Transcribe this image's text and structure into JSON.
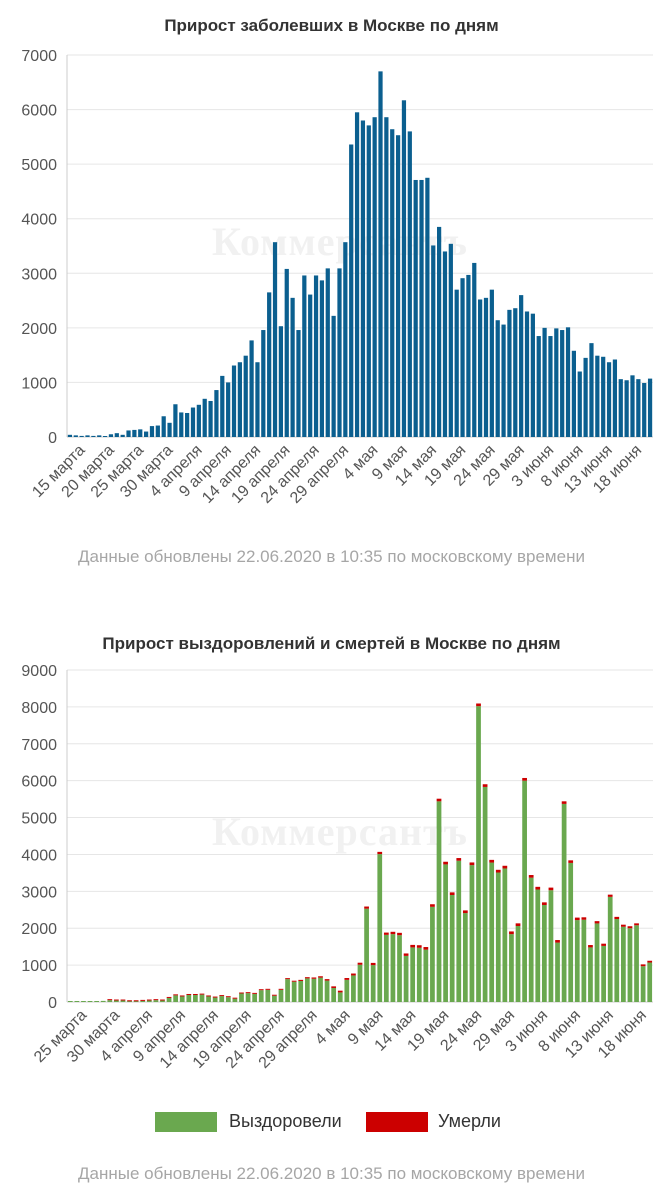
{
  "chart_data": [
    {
      "type": "bar",
      "title": "Прирост заболевших в Москве по дням",
      "note": "Данные обновлены 22.06.2020 в 10:35 по московскому времени",
      "watermark": "Коммерсантъ",
      "xlabel": "",
      "ylabel": "",
      "ylim": [
        0,
        7000
      ],
      "yticks": [
        "0",
        "1000",
        "2000",
        "3000",
        "4000",
        "5000",
        "6000",
        "7000"
      ],
      "grid": true,
      "categories_start": "2020-03-13",
      "category_labels": [
        "15 марта",
        "20 марта",
        "25 марта",
        "30 марта",
        "4 апреля",
        "9 апреля",
        "14 апреля",
        "19 апреля",
        "24 апреля",
        "29 апреля",
        "4 мая",
        "9 мая",
        "14 мая",
        "19 мая",
        "24 мая",
        "29 мая",
        "3 июня",
        "8 июня",
        "13 июня",
        "18 июня"
      ],
      "colors": {
        "bars": "#0b5f8f"
      },
      "series": [
        {
          "values": [
            40,
            30,
            20,
            30,
            20,
            30,
            10,
            50,
            70,
            40,
            120,
            130,
            140,
            100,
            200,
            210,
            380,
            260,
            600,
            450,
            440,
            540,
            590,
            700,
            660,
            860,
            1120,
            1000,
            1310,
            1370,
            1490,
            1770,
            1370,
            1960,
            2650,
            3570,
            2030,
            3080,
            2550,
            1960,
            2960,
            2610,
            2960,
            2870,
            3090,
            2220,
            3090,
            3570,
            5360,
            5950,
            5800,
            5710,
            5860,
            6700,
            5860,
            5640,
            5530,
            6170,
            5600,
            4710,
            4710,
            4750,
            3510,
            3850,
            3400,
            3540,
            2700,
            2910,
            2970,
            3190,
            2520,
            2550,
            2700,
            2140,
            2060,
            2330,
            2360,
            2600,
            2300,
            2260,
            1850,
            2000,
            1850,
            1990,
            1960,
            2010,
            1580,
            1200,
            1450,
            1720,
            1490,
            1470,
            1370,
            1420,
            1060,
            1040,
            1130,
            1060,
            990,
            1070
          ]
        }
      ]
    },
    {
      "type": "bar",
      "stacked": true,
      "title": "Прирост выздоровлений и смертей в Москве по дням",
      "note": "Данные обновлены 22.06.2020 в 10:35 по московскому времени",
      "watermark": "Коммерсантъ",
      "xlabel": "",
      "ylabel": "",
      "ylim": [
        0,
        9000
      ],
      "yticks": [
        "0",
        "1000",
        "2000",
        "3000",
        "4000",
        "5000",
        "6000",
        "7000",
        "8000",
        "9000"
      ],
      "grid": true,
      "legend": "bottom",
      "categories_start": "2020-03-23",
      "category_labels": [
        "25 марта",
        "30 марта",
        "4 апреля",
        "9 апреля",
        "14 апреля",
        "19 апреля",
        "24 апреля",
        "29 апреля",
        "4 мая",
        "9 мая",
        "14 мая",
        "19 мая",
        "24 мая",
        "29 мая",
        "3 июня",
        "8 июня",
        "13 июня",
        "18 июня"
      ],
      "series": [
        {
          "name": "Выздоровели",
          "color": "#6aa84f",
          "values": [
            10,
            10,
            10,
            10,
            20,
            30,
            50,
            40,
            40,
            20,
            20,
            30,
            40,
            50,
            40,
            110,
            180,
            150,
            190,
            190,
            200,
            150,
            120,
            160,
            130,
            90,
            230,
            240,
            220,
            320,
            330,
            170,
            330,
            620,
            550,
            570,
            640,
            630,
            660,
            580,
            380,
            260,
            600,
            720,
            1010,
            2530,
            1000,
            4010,
            1820,
            1840,
            1810,
            1250,
            1480,
            1470,
            1420,
            2580,
            5440,
            3730,
            2900,
            3830,
            2410,
            3710,
            8020,
            5830,
            3780,
            3510,
            3620,
            1840,
            2060,
            6000,
            3370,
            3050,
            2630,
            3030,
            1610,
            5370,
            3770,
            2220,
            2230,
            1480,
            2130,
            1520,
            2850,
            2250,
            2040,
            2000,
            2080,
            970,
            1070
          ]
        },
        {
          "name": "Умерли",
          "color": "#cc0000",
          "values": [
            0,
            0,
            0,
            0,
            0,
            0,
            1,
            1,
            1,
            1,
            1,
            2,
            2,
            3,
            3,
            3,
            4,
            5,
            5,
            6,
            7,
            8,
            8,
            10,
            11,
            12,
            14,
            15,
            16,
            18,
            18,
            20,
            22,
            24,
            26,
            30,
            33,
            35,
            38,
            40,
            44,
            47,
            50,
            52,
            55,
            58,
            60,
            60,
            62,
            63,
            65,
            66,
            68,
            69,
            70,
            70,
            71,
            72,
            72,
            72,
            73,
            73,
            72,
            73,
            73,
            74,
            73,
            73,
            72,
            73,
            72,
            72,
            71,
            71,
            70,
            70,
            70,
            68,
            66,
            64,
            62,
            61,
            60,
            58,
            56,
            54,
            52,
            50,
            48
          ]
        }
      ]
    }
  ]
}
